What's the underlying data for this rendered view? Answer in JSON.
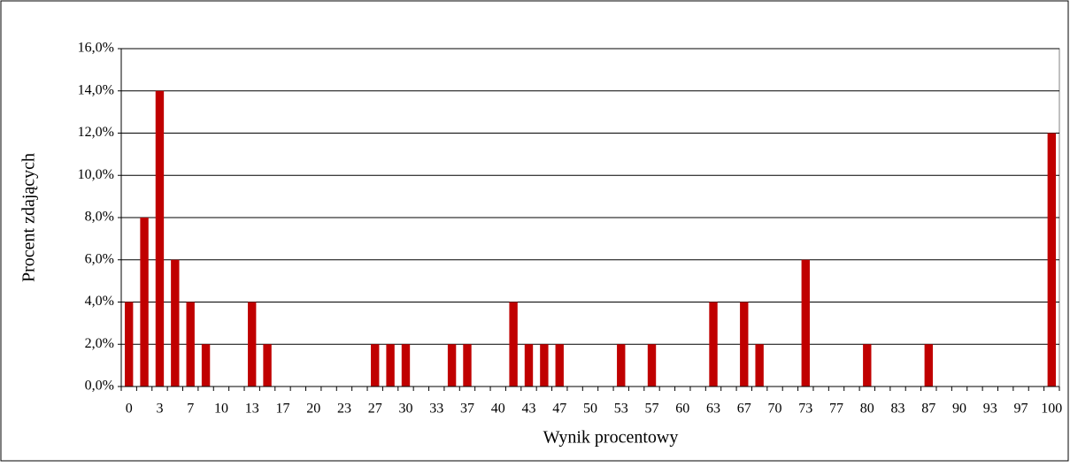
{
  "chart_data": {
    "type": "bar",
    "x_label": "Wynik procentowy",
    "y_label": "Procent zdających",
    "categories": [
      "0",
      null,
      "3",
      null,
      "7",
      null,
      "10",
      null,
      "13",
      null,
      "17",
      null,
      "20",
      null,
      "23",
      null,
      "27",
      null,
      "30",
      null,
      "33",
      null,
      "37",
      null,
      "40",
      null,
      "43",
      null,
      "47",
      null,
      "50",
      null,
      "53",
      null,
      "57",
      null,
      "60",
      null,
      "63",
      null,
      "67",
      null,
      "70",
      null,
      "73",
      null,
      "77",
      null,
      "80",
      null,
      "83",
      null,
      "87",
      null,
      "90",
      null,
      "93",
      null,
      "97",
      null,
      "100"
    ],
    "values": [
      4,
      8,
      14,
      6,
      4,
      2,
      0,
      0,
      4,
      2,
      0,
      0,
      0,
      0,
      0,
      0,
      2,
      2,
      2,
      0,
      0,
      2,
      2,
      0,
      0,
      4,
      2,
      2,
      2,
      0,
      0,
      0,
      2,
      0,
      2,
      0,
      0,
      0,
      4,
      0,
      4,
      2,
      0,
      0,
      6,
      0,
      0,
      0,
      2,
      0,
      0,
      0,
      2,
      0,
      0,
      0,
      0,
      0,
      0,
      0,
      12
    ],
    "color": "#c00000",
    "ylim": [
      0,
      16
    ],
    "yticks": [
      {
        "value": 0,
        "label": "0,0%"
      },
      {
        "value": 2,
        "label": "2,0%"
      },
      {
        "value": 4,
        "label": "4,0%"
      },
      {
        "value": 6,
        "label": "6,0%"
      },
      {
        "value": 8,
        "label": "8,0%"
      },
      {
        "value": 10,
        "label": "10,0%"
      },
      {
        "value": 12,
        "label": "12,0%"
      },
      {
        "value": 14,
        "label": "14,0%"
      },
      {
        "value": 16,
        "label": "16,0%"
      }
    ],
    "grid": true
  }
}
